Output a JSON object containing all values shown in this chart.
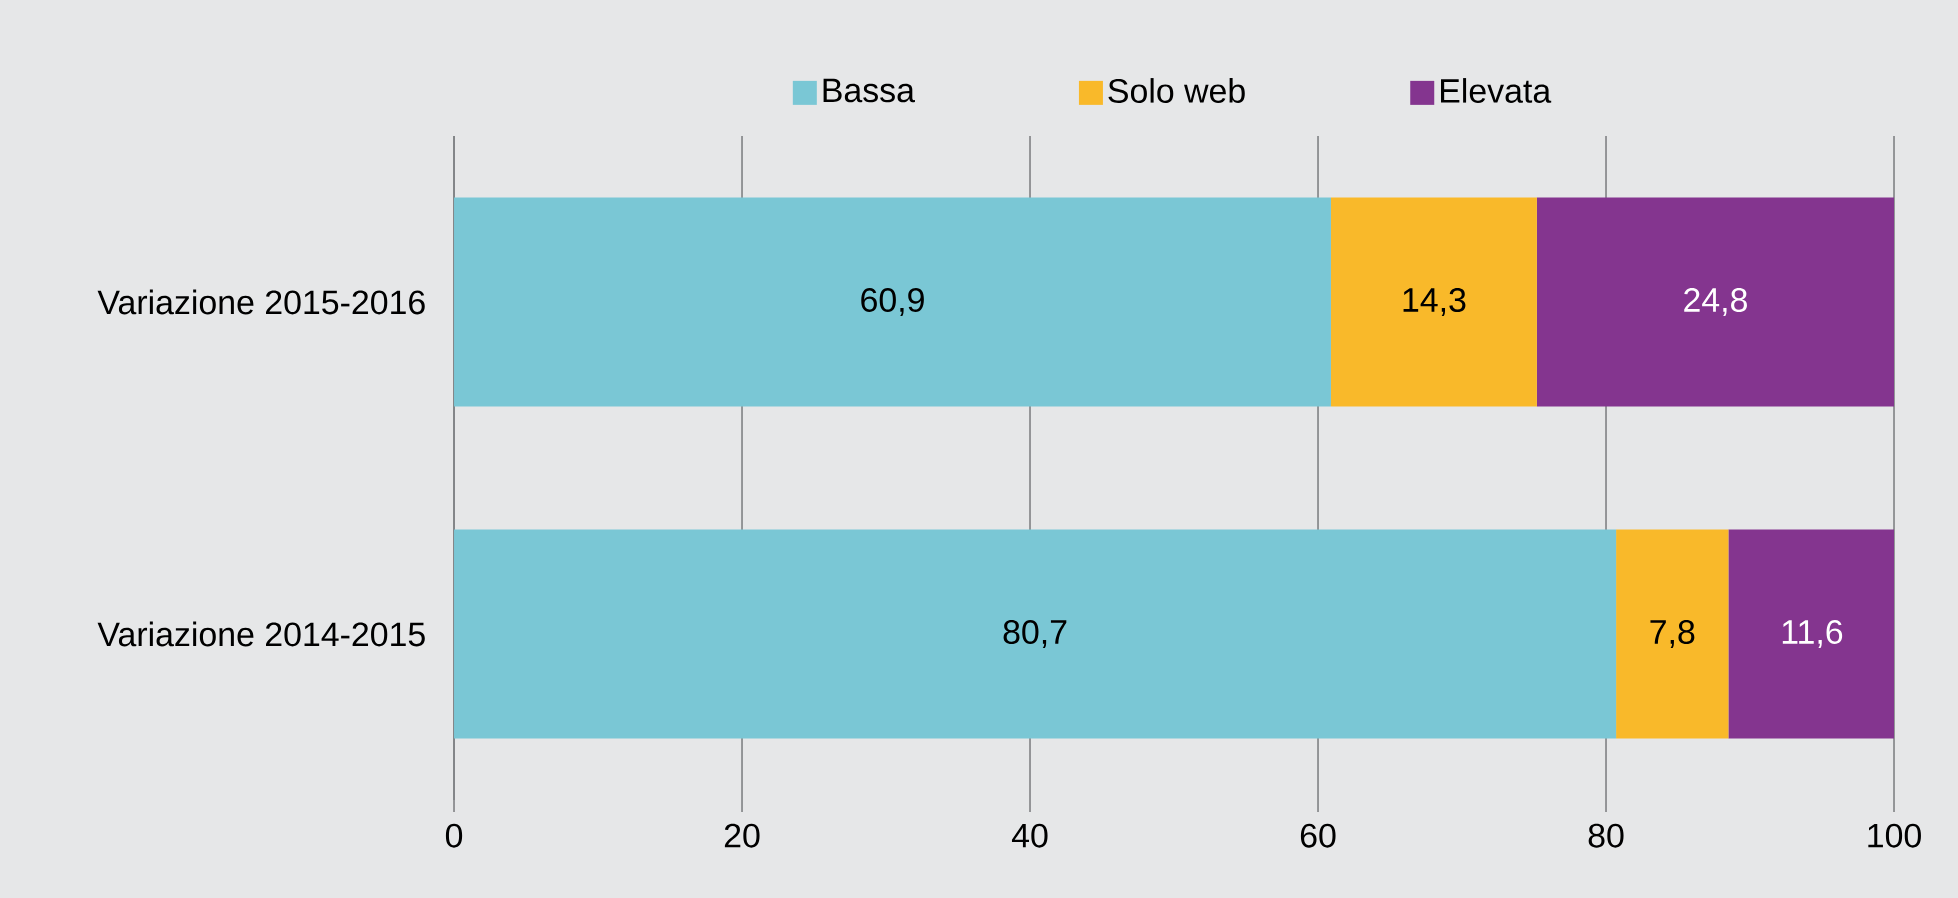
{
  "chart_data": {
    "type": "bar",
    "orientation": "horizontal",
    "stacked": true,
    "categories": [
      "Variazione 2015-2016",
      "Variazione 2014-2015"
    ],
    "series": [
      {
        "name": "Bassa",
        "color": "#7ac7d5",
        "values": [
          60.9,
          80.7
        ],
        "value_labels": [
          "60,9",
          "80,7"
        ]
      },
      {
        "name": "Solo web",
        "color": "#f9b92a",
        "values": [
          14.3,
          7.8
        ],
        "value_labels": [
          "14,3",
          "7,8"
        ]
      },
      {
        "name": "Elevata",
        "color": "#84358f",
        "values": [
          24.8,
          11.6
        ],
        "value_labels": [
          "24,8",
          "11,6"
        ]
      }
    ],
    "xlim": [
      0,
      100
    ],
    "xticks": [
      0,
      20,
      40,
      60,
      80,
      100
    ],
    "grid": "x",
    "legend": "top"
  }
}
